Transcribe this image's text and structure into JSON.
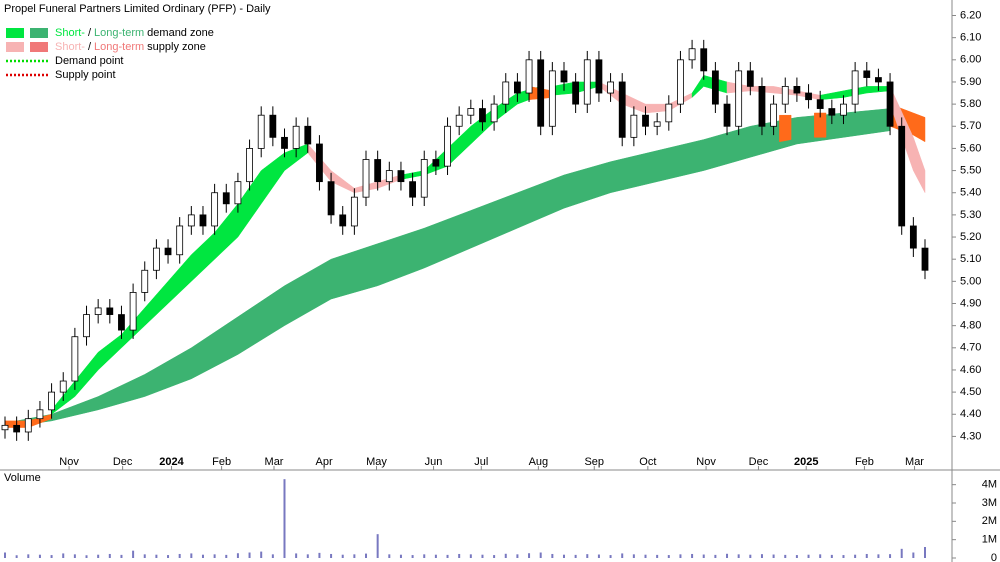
{
  "chart_data": {
    "type": "candlestick",
    "title": "Propel Funeral Partners Limited Ordinary (PFP) - Daily",
    "legend": [
      {
        "parts": [
          "Short-",
          "/",
          "Long-term",
          "demand zone"
        ],
        "colors": [
          "#00e640",
          "#3cb371"
        ]
      },
      {
        "parts": [
          "Short-",
          "/",
          "Long-term",
          "supply zone"
        ],
        "colors": [
          "#f7b3b3",
          "#f07878"
        ]
      },
      {
        "label": "Demand point",
        "color": "#00dd00",
        "dotted": true
      },
      {
        "label": "Supply point",
        "color": "#dd0000",
        "dotted": true
      }
    ],
    "ylim": [
      4.18,
      6.27
    ],
    "yticks": [
      {
        "value": 6.2,
        "label": "6.20"
      },
      {
        "value": 6.1,
        "label": "6.10"
      },
      {
        "value": 6.0,
        "label": "6.00"
      },
      {
        "value": 5.9,
        "label": "5.90"
      },
      {
        "value": 5.8,
        "label": "5.80"
      },
      {
        "value": 5.7,
        "label": "5.70"
      },
      {
        "value": 5.6,
        "label": "5.60"
      },
      {
        "value": 5.5,
        "label": "5.50"
      },
      {
        "value": 5.4,
        "label": "5.40"
      },
      {
        "value": 5.3,
        "label": "5.30"
      },
      {
        "value": 5.2,
        "label": "5.20"
      },
      {
        "value": 5.1,
        "label": "5.10"
      },
      {
        "value": 5.0,
        "label": "5.00"
      },
      {
        "value": 4.9,
        "label": "4.90"
      },
      {
        "value": 4.8,
        "label": "4.80"
      },
      {
        "value": 4.7,
        "label": "4.70"
      },
      {
        "value": 4.6,
        "label": "4.60"
      },
      {
        "value": 4.5,
        "label": "4.50"
      },
      {
        "value": 4.4,
        "label": "4.40"
      },
      {
        "value": 4.3,
        "label": "4.30"
      }
    ],
    "xlim": [
      0,
      79
    ],
    "xticks": [
      {
        "value": 5.5,
        "label": "Nov"
      },
      {
        "value": 10.1,
        "label": "Dec"
      },
      {
        "value": 14.3,
        "label": "2024"
      },
      {
        "value": 18.6,
        "label": "Feb"
      },
      {
        "value": 23.1,
        "label": "Mar"
      },
      {
        "value": 27.4,
        "label": "Apr"
      },
      {
        "value": 31.9,
        "label": "May"
      },
      {
        "value": 36.8,
        "label": "Jun"
      },
      {
        "value": 40.9,
        "label": "Jul"
      },
      {
        "value": 45.8,
        "label": "Aug"
      },
      {
        "value": 50.6,
        "label": "Sep"
      },
      {
        "value": 55.2,
        "label": "Oct"
      },
      {
        "value": 60.2,
        "label": "Nov"
      },
      {
        "value": 64.7,
        "label": "Dec"
      },
      {
        "value": 68.8,
        "label": "2025"
      },
      {
        "value": 73.8,
        "label": "Feb"
      },
      {
        "value": 78.1,
        "label": "Mar"
      }
    ],
    "open": [
      4.33,
      4.35,
      4.32,
      4.38,
      4.42,
      4.5,
      4.55,
      4.75,
      4.85,
      4.88,
      4.85,
      4.78,
      4.95,
      5.05,
      5.15,
      5.12,
      5.25,
      5.3,
      5.25,
      5.4,
      5.35,
      5.45,
      5.6,
      5.75,
      5.65,
      5.6,
      5.7,
      5.62,
      5.45,
      5.3,
      5.25,
      5.38,
      5.55,
      5.45,
      5.5,
      5.45,
      5.38,
      5.55,
      5.52,
      5.7,
      5.75,
      5.78,
      5.72,
      5.8,
      5.9,
      5.85,
      6.0,
      5.7,
      5.95,
      5.9,
      5.8,
      6.0,
      5.85,
      5.9,
      5.65,
      5.75,
      5.7,
      5.72,
      5.8,
      6.0,
      6.05,
      5.95,
      5.8,
      5.7,
      5.95,
      5.88,
      5.7,
      5.8,
      5.88,
      5.85,
      5.82,
      5.78,
      5.75,
      5.8,
      5.95,
      5.92,
      5.9,
      5.7,
      5.25,
      5.15
    ],
    "high": [
      4.39,
      4.39,
      4.42,
      4.46,
      4.54,
      4.59,
      4.79,
      4.89,
      4.92,
      4.92,
      4.89,
      4.99,
      5.09,
      5.19,
      5.19,
      5.29,
      5.34,
      5.34,
      5.44,
      5.44,
      5.49,
      5.64,
      5.79,
      5.79,
      5.69,
      5.74,
      5.74,
      5.66,
      5.49,
      5.34,
      5.42,
      5.59,
      5.59,
      5.54,
      5.54,
      5.49,
      5.59,
      5.59,
      5.74,
      5.79,
      5.82,
      5.82,
      5.84,
      5.94,
      5.94,
      6.04,
      6.04,
      5.99,
      5.99,
      5.94,
      6.04,
      6.04,
      5.94,
      5.94,
      5.79,
      5.79,
      5.76,
      5.84,
      6.04,
      6.09,
      6.09,
      5.99,
      5.84,
      5.99,
      5.99,
      5.92,
      5.84,
      5.92,
      5.92,
      5.89,
      5.86,
      5.82,
      5.84,
      5.99,
      5.99,
      5.96,
      5.94,
      5.74,
      5.29,
      5.19
    ],
    "low": [
      4.29,
      4.28,
      4.28,
      4.34,
      4.38,
      4.46,
      4.51,
      4.71,
      4.81,
      4.81,
      4.74,
      4.74,
      4.91,
      5.01,
      5.08,
      5.08,
      5.21,
      5.21,
      5.21,
      5.31,
      5.31,
      5.41,
      5.56,
      5.61,
      5.56,
      5.56,
      5.58,
      5.41,
      5.26,
      5.21,
      5.21,
      5.34,
      5.41,
      5.41,
      5.41,
      5.34,
      5.34,
      5.48,
      5.48,
      5.66,
      5.71,
      5.68,
      5.68,
      5.76,
      5.81,
      5.81,
      5.66,
      5.66,
      5.86,
      5.76,
      5.76,
      5.81,
      5.81,
      5.61,
      5.61,
      5.66,
      5.66,
      5.68,
      5.76,
      5.96,
      5.91,
      5.76,
      5.66,
      5.66,
      5.84,
      5.66,
      5.66,
      5.76,
      5.81,
      5.78,
      5.74,
      5.71,
      5.71,
      5.76,
      5.88,
      5.86,
      5.66,
      5.21,
      5.11,
      5.01
    ],
    "close": [
      4.35,
      4.32,
      4.38,
      4.42,
      4.5,
      4.55,
      4.75,
      4.85,
      4.88,
      4.85,
      4.78,
      4.95,
      5.05,
      5.15,
      5.12,
      5.25,
      5.3,
      5.25,
      5.4,
      5.35,
      5.45,
      5.6,
      5.75,
      5.65,
      5.6,
      5.7,
      5.62,
      5.45,
      5.3,
      5.25,
      5.38,
      5.55,
      5.45,
      5.5,
      5.45,
      5.38,
      5.55,
      5.52,
      5.7,
      5.75,
      5.78,
      5.72,
      5.8,
      5.9,
      5.85,
      6.0,
      5.7,
      5.95,
      5.9,
      5.8,
      6.0,
      5.85,
      5.9,
      5.65,
      5.75,
      5.7,
      5.72,
      5.8,
      6.0,
      6.05,
      5.95,
      5.8,
      5.7,
      5.95,
      5.88,
      5.7,
      5.8,
      5.88,
      5.85,
      5.82,
      5.78,
      5.75,
      5.8,
      5.95,
      5.92,
      5.9,
      5.7,
      5.25,
      5.15,
      5.05
    ],
    "zones": [
      {
        "color": "#3cb371",
        "x": [
          0,
          4,
          8,
          12,
          16,
          20,
          24,
          28,
          32,
          36,
          40,
          44,
          48,
          52,
          56,
          60,
          64,
          68,
          72,
          76
        ],
        "upper": [
          4.36,
          4.4,
          4.48,
          4.58,
          4.7,
          4.84,
          4.98,
          5.1,
          5.17,
          5.24,
          5.32,
          5.4,
          5.48,
          5.54,
          5.59,
          5.64,
          5.7,
          5.74,
          5.76,
          5.78
        ],
        "lower": [
          4.34,
          4.37,
          4.42,
          4.48,
          4.56,
          4.67,
          4.8,
          4.92,
          4.98,
          5.06,
          5.15,
          5.24,
          5.33,
          5.4,
          5.45,
          5.5,
          5.56,
          5.62,
          5.65,
          5.68
        ]
      },
      {
        "color": "#ff6a1a",
        "x": [
          76,
          78,
          79
        ],
        "upper": [
          5.8,
          5.76,
          5.74
        ],
        "lower": [
          5.7,
          5.66,
          5.63
        ]
      },
      {
        "color": "#ff6a1a",
        "x": [
          66.5,
          67.5
        ],
        "upper": [
          5.75,
          5.75
        ],
        "lower": [
          5.63,
          5.64
        ]
      },
      {
        "color": "#ff6a1a",
        "x": [
          69.5,
          70.5
        ],
        "upper": [
          5.76,
          5.76
        ],
        "lower": [
          5.65,
          5.65
        ]
      },
      {
        "color": "#ff6a1a",
        "x": [
          0,
          2,
          4
        ],
        "upper": [
          4.37,
          4.37,
          4.4
        ],
        "lower": [
          4.34,
          4.34,
          4.38
        ]
      },
      {
        "color": "#00e640",
        "x": [
          4,
          6,
          8,
          10,
          12,
          14,
          16,
          18,
          20,
          22,
          24,
          26
        ],
        "upper": [
          4.42,
          4.55,
          4.68,
          4.76,
          4.88,
          5.0,
          5.12,
          5.22,
          5.35,
          5.5,
          5.58,
          5.62
        ],
        "lower": [
          4.4,
          4.48,
          4.6,
          4.7,
          4.8,
          4.9,
          5.0,
          5.1,
          5.2,
          5.35,
          5.5,
          5.58
        ]
      },
      {
        "color": "#f7b3b3",
        "x": [
          26,
          28,
          30,
          32,
          34
        ],
        "upper": [
          5.62,
          5.5,
          5.42,
          5.45,
          5.48
        ],
        "lower": [
          5.58,
          5.45,
          5.4,
          5.42,
          5.46
        ]
      },
      {
        "color": "#00e640",
        "x": [
          34,
          36,
          38,
          40,
          42,
          44,
          46
        ],
        "upper": [
          5.48,
          5.5,
          5.6,
          5.7,
          5.78,
          5.85,
          5.88
        ],
        "lower": [
          5.46,
          5.48,
          5.52,
          5.62,
          5.72,
          5.8,
          5.84
        ]
      },
      {
        "color": "#ff6a1a",
        "x": [
          45,
          47
        ],
        "upper": [
          5.88,
          5.86
        ],
        "lower": [
          5.82,
          5.83
        ]
      },
      {
        "color": "#00e640",
        "x": [
          47,
          49,
          51
        ],
        "upper": [
          5.88,
          5.9,
          5.9
        ],
        "lower": [
          5.84,
          5.85,
          5.88
        ]
      },
      {
        "color": "#f7b3b3",
        "x": [
          51,
          53,
          55,
          57,
          59
        ],
        "upper": [
          5.9,
          5.85,
          5.8,
          5.8,
          5.85
        ],
        "lower": [
          5.88,
          5.8,
          5.76,
          5.77,
          5.83
        ]
      },
      {
        "color": "#00e640",
        "x": [
          59,
          60,
          62
        ],
        "upper": [
          5.85,
          5.93,
          5.9
        ],
        "lower": [
          5.83,
          5.88,
          5.85
        ]
      },
      {
        "color": "#f7b3b3",
        "x": [
          62,
          64,
          66,
          68,
          70
        ],
        "upper": [
          5.9,
          5.88,
          5.88,
          5.86,
          5.84
        ],
        "lower": [
          5.85,
          5.86,
          5.85,
          5.84,
          5.82
        ]
      },
      {
        "color": "#00e640",
        "x": [
          70,
          72,
          74,
          76
        ],
        "upper": [
          5.84,
          5.86,
          5.88,
          5.88
        ],
        "lower": [
          5.82,
          5.83,
          5.85,
          5.86
        ]
      },
      {
        "color": "#f7b3b3",
        "x": [
          76,
          78,
          79
        ],
        "upper": [
          5.88,
          5.65,
          5.5
        ],
        "lower": [
          5.8,
          5.5,
          5.4
        ]
      }
    ],
    "volume": {
      "label": "Volume",
      "color": "#7878c0",
      "ylim": [
        0,
        4800000
      ],
      "yticks": [
        0,
        {
          "value": 1000000,
          "label": "1M"
        },
        {
          "value": 2000000,
          "label": "2M"
        },
        {
          "value": 3000000,
          "label": "3M"
        },
        {
          "value": 4000000,
          "label": "4M"
        }
      ],
      "values": [
        300000,
        150000,
        200000,
        180000,
        160000,
        250000,
        200000,
        150000,
        180000,
        220000,
        170000,
        400000,
        200000,
        180000,
        160000,
        220000,
        250000,
        180000,
        200000,
        170000,
        260000,
        300000,
        350000,
        200000,
        4300000,
        250000,
        200000,
        280000,
        220000,
        180000,
        200000,
        240000,
        1300000,
        200000,
        180000,
        160000,
        200000,
        180000,
        170000,
        220000,
        200000,
        180000,
        160000,
        230000,
        200000,
        260000,
        300000,
        220000,
        180000,
        170000,
        210000,
        190000,
        160000,
        250000,
        200000,
        180000,
        170000,
        160000,
        200000,
        220000,
        190000,
        170000,
        230000,
        200000,
        180000,
        210000,
        190000,
        170000,
        160000,
        180000,
        200000,
        170000,
        160000,
        180000,
        220000,
        200000,
        210000,
        500000,
        300000,
        600000
      ]
    }
  }
}
